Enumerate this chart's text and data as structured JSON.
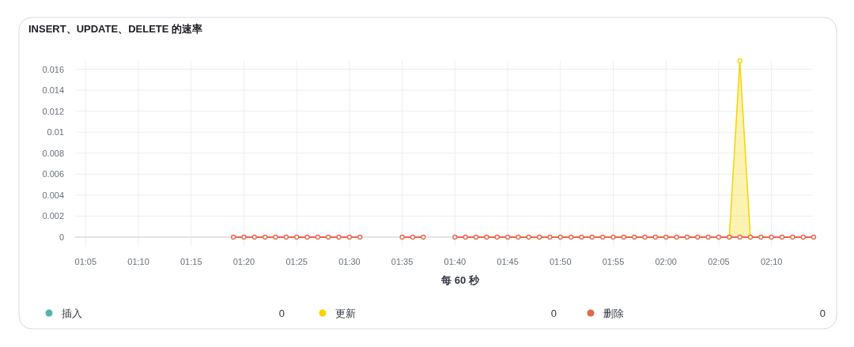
{
  "chart_data": {
    "type": "line",
    "title": "INSERT、UPDATE、DELETE 的速率",
    "xlabel": "每 60 秒",
    "x": [
      1.3167,
      1.3333,
      1.35,
      1.3667,
      1.3833,
      1.4,
      1.4167,
      1.4333,
      1.45,
      1.4667,
      1.4833,
      1.5,
      1.5167,
      1.5833,
      1.6,
      1.6167,
      1.6667,
      1.6833,
      1.7,
      1.7167,
      1.7333,
      1.75,
      1.7667,
      1.7833,
      1.8,
      1.8167,
      1.8333,
      1.85,
      1.8667,
      1.8833,
      1.9,
      1.9167,
      1.9333,
      1.95,
      1.9667,
      1.9833,
      2,
      2.0167,
      2.0333,
      2.05,
      2.0667,
      2.0833,
      2.1,
      2.1167,
      2.1333,
      2.15,
      2.1667,
      2.1833,
      2.2,
      2.2167,
      2.2333
    ],
    "series": [
      {
        "name": "插入",
        "color": "#54b3b3",
        "values": [
          null,
          null,
          null,
          null,
          null,
          null,
          null,
          null,
          null,
          null,
          null,
          null,
          null,
          null,
          null,
          null,
          null,
          null,
          null,
          null,
          null,
          null,
          null,
          null,
          null,
          null,
          null,
          null,
          null,
          null,
          null,
          null,
          null,
          null,
          null,
          null,
          null,
          null,
          null,
          null,
          null,
          null,
          null,
          null,
          null,
          null,
          null,
          null,
          null,
          null,
          null
        ]
      },
      {
        "name": "更新",
        "color": "#f5d400",
        "type": "area",
        "x": [
          2.1,
          2.1167,
          2.1333
        ],
        "values": [
          0,
          0.0168,
          0
        ]
      },
      {
        "name": "删除",
        "color": "#e7664c",
        "values": [
          0,
          0,
          0,
          0,
          0,
          0,
          0,
          0,
          0,
          0,
          0,
          0,
          0,
          0,
          0,
          0,
          0,
          0,
          0,
          0,
          0,
          0,
          0,
          0,
          0,
          0,
          0,
          0,
          0,
          0,
          0,
          0,
          0,
          0,
          0,
          0,
          0,
          0,
          0,
          0,
          0,
          0,
          0,
          0,
          0,
          0,
          0,
          0,
          0,
          0,
          0
        ]
      }
    ],
    "xlim": [
      1.0667,
      2.2333
    ],
    "xticks": [
      {
        "value": 1.0833,
        "label": "01:05"
      },
      {
        "value": 1.1667,
        "label": "01:10"
      },
      {
        "value": 1.25,
        "label": "01:15"
      },
      {
        "value": 1.3333,
        "label": "01:20"
      },
      {
        "value": 1.4167,
        "label": "01:25"
      },
      {
        "value": 1.5,
        "label": "01:30"
      },
      {
        "value": 1.5833,
        "label": "01:35"
      },
      {
        "value": 1.6667,
        "label": "01:40"
      },
      {
        "value": 1.75,
        "label": "01:45"
      },
      {
        "value": 1.8333,
        "label": "01:50"
      },
      {
        "value": 1.9167,
        "label": "01:55"
      },
      {
        "value": 2,
        "label": "02:00"
      },
      {
        "value": 2.0833,
        "label": "02:05"
      },
      {
        "value": 2.1667,
        "label": "02:10"
      }
    ],
    "ylim": [
      0,
      0.0168
    ],
    "yticks": [
      0,
      0.002,
      0.004,
      0.006,
      0.008,
      0.01,
      0.012,
      0.014,
      0.016
    ],
    "grid": true,
    "legend": "bottom",
    "marker": "circle",
    "line_style": "solid",
    "annotations": [
      "0",
      "0",
      "0"
    ]
  }
}
